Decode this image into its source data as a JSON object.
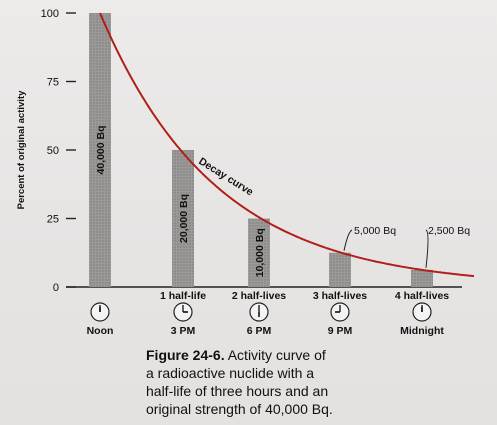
{
  "chart_data": {
    "type": "bar+line",
    "ylabel": "Percent of original activity",
    "ylim": [
      0,
      100
    ],
    "yticks": [
      0,
      25,
      50,
      75,
      100
    ],
    "categories": [
      "Noon",
      "1 half-life",
      "2 half-lives",
      "3 half-lives",
      "4 half-lives"
    ],
    "times": [
      "Noon",
      "3 PM",
      "6 PM",
      "9 PM",
      "Midnight"
    ],
    "clock_icons": [
      "clock-noon-icon",
      "clock-3pm-icon",
      "clock-6pm-icon",
      "clock-9pm-icon",
      "clock-midnight-icon"
    ],
    "values": [
      100,
      50,
      25,
      12.5,
      6.25
    ],
    "bar_labels": [
      "40,000 Bq",
      "20,000 Bq",
      "10,000 Bq",
      "5,000 Bq",
      "2,500 Bq"
    ],
    "curve_label": "Decay curve",
    "curve_color": "#b0201a",
    "bar_color": "#9c9a98"
  },
  "caption": {
    "figure_number": "Figure 24-6.",
    "text": "Activity curve of a radioactive nuclide with a half-life of three hours and an original strength of 40,000 Bq."
  }
}
